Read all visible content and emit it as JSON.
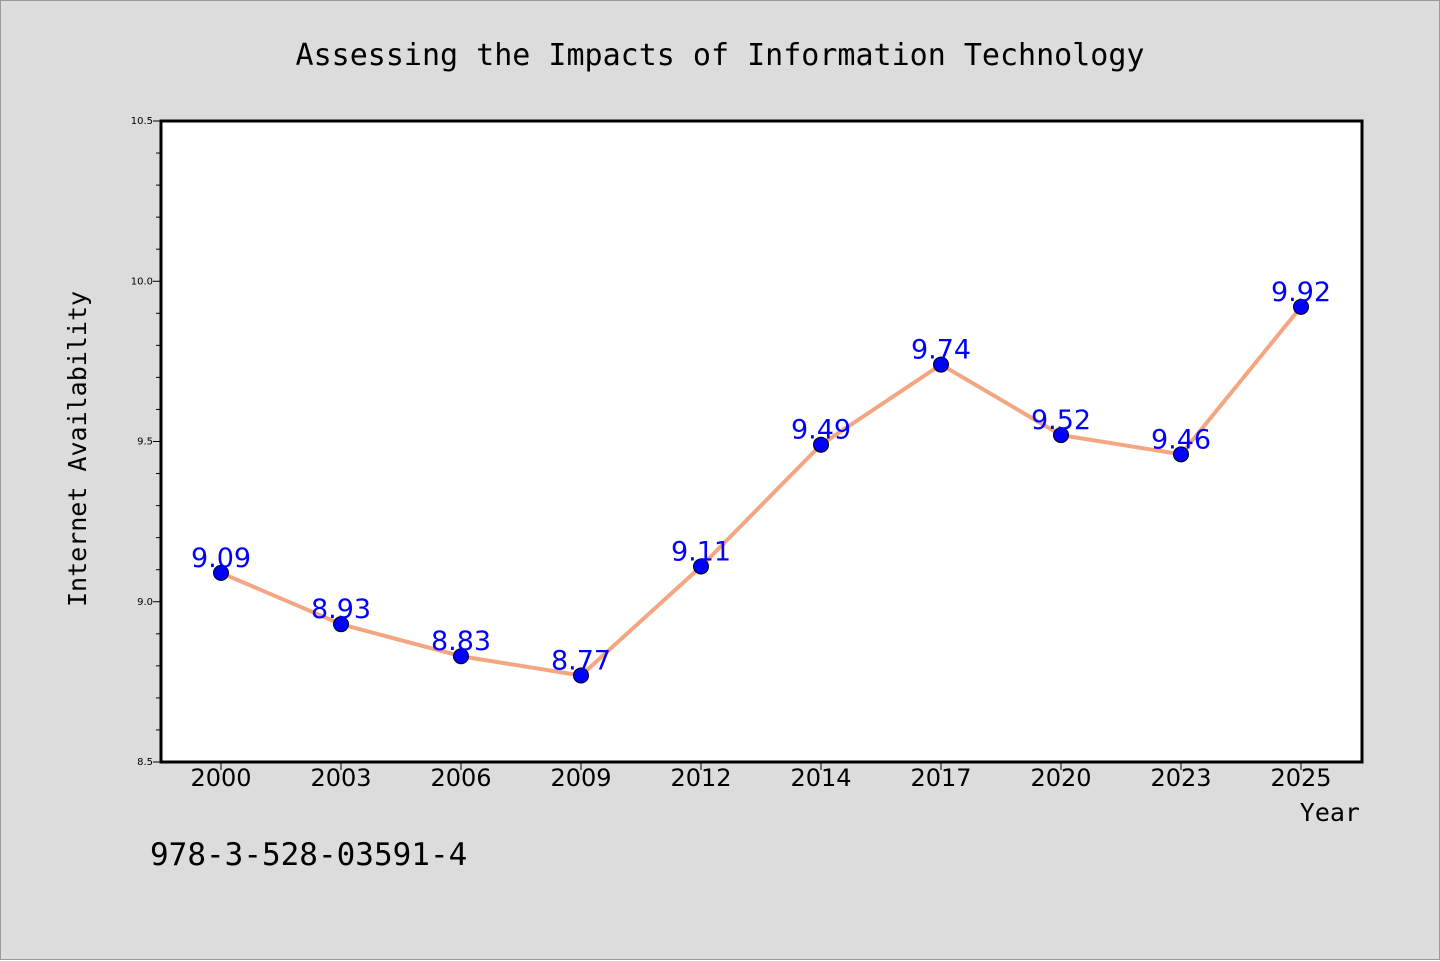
{
  "footer_text": "978-3-528-03591-4",
  "colors": {
    "figure_background": "#dcdcdc",
    "plot_background": "#ffffff",
    "line": "#f4a582",
    "marker_fill": "#0000ff",
    "data_label": "#0000ff"
  },
  "chart_data": {
    "type": "line",
    "title": "Assessing the Impacts of Information Technology",
    "xlabel": "Year",
    "ylabel": "Internet Availability",
    "categories": [
      "2000",
      "2003",
      "2006",
      "2009",
      "2012",
      "2014",
      "2017",
      "2020",
      "2023",
      "2025"
    ],
    "series": [
      {
        "values": [
          9.09,
          8.93,
          8.83,
          8.77,
          9.11,
          9.49,
          9.74,
          9.52,
          9.46,
          9.92
        ],
        "data_labels": [
          "9.09",
          "8.93",
          "8.83",
          "8.77",
          "9.11",
          "9.49",
          "9.74",
          "9.52",
          "9.46",
          "9.92"
        ]
      }
    ],
    "ylim": [
      8.5,
      10.5
    ],
    "yticks": [
      "8.5",
      "9.0",
      "9.5",
      "10.0",
      "10.5"
    ],
    "y_minor_step": 0.1,
    "grid": false,
    "legend": "none",
    "marker": "circle"
  }
}
